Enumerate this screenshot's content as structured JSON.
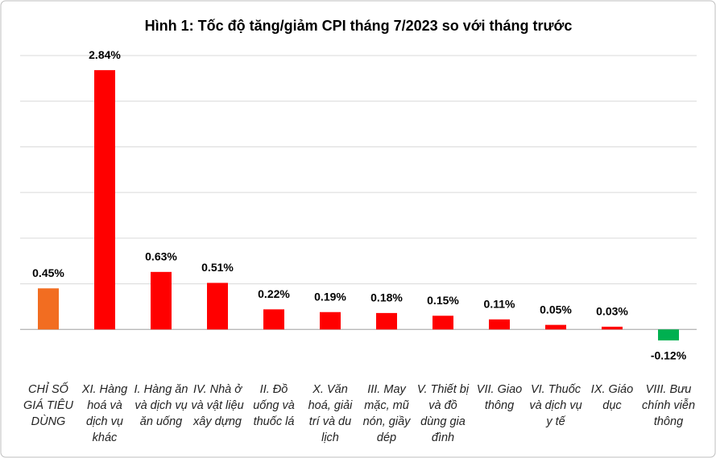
{
  "chart_data": {
    "type": "bar",
    "title": "Hình 1: Tốc độ tăng/giảm CPI tháng 7/2023 so với tháng trước",
    "categories": [
      "CHỈ SỐ GIÁ TIÊU DÙNG",
      "XI. Hàng hoá và dịch vụ khác",
      "I. Hàng ăn và dịch vụ ăn uống",
      "IV. Nhà ở và vật liệu xây dựng",
      "II. Đồ uống và thuốc lá",
      "X. Văn hoá, giải trí và du lịch",
      "III. May mặc, mũ nón, giầy dép",
      "V. Thiết bị và đồ dùng gia đình",
      "VII. Giao thông",
      "VI. Thuốc và dịch vụ y tế",
      "IX. Giáo dục",
      "VIII. Bưu chính viễn thông"
    ],
    "values": [
      0.45,
      2.84,
      0.63,
      0.51,
      0.22,
      0.19,
      0.18,
      0.15,
      0.11,
      0.05,
      0.03,
      -0.12
    ],
    "value_labels": [
      "0.45%",
      "2.84%",
      "0.63%",
      "0.51%",
      "0.22%",
      "0.19%",
      "0.18%",
      "0.15%",
      "0.11%",
      "0.05%",
      "0.03%",
      "-0.12%"
    ],
    "colors": [
      "#f26d21",
      "#ff0000",
      "#ff0000",
      "#ff0000",
      "#ff0000",
      "#ff0000",
      "#ff0000",
      "#ff0000",
      "#ff0000",
      "#ff0000",
      "#ff0000",
      "#00b050"
    ],
    "ylim": [
      -0.5,
      3
    ],
    "yticks": [
      0,
      0.5,
      1,
      1.5,
      2,
      2.5,
      3
    ],
    "grid": true
  }
}
